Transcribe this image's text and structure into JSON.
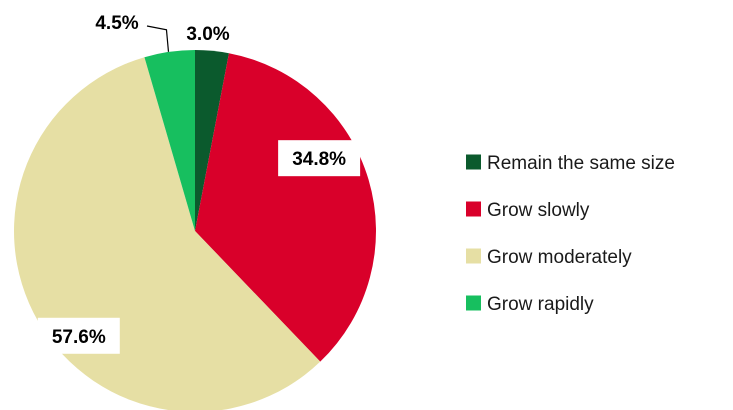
{
  "chart_data": {
    "type": "pie",
    "title": "",
    "categories": [
      "Remain the same size",
      "Grow slowly",
      "Grow moderately",
      "Grow rapidly"
    ],
    "values": [
      3.0,
      34.8,
      57.6,
      4.5
    ],
    "value_labels": [
      "3.0%",
      "34.8%",
      "57.6%",
      "4.5%"
    ],
    "colors": [
      "#0b5a2d",
      "#d9002a",
      "#e6dfa4",
      "#17bf5f"
    ],
    "start_angle_deg": 0,
    "direction": "clockwise",
    "legend_position": "right"
  }
}
